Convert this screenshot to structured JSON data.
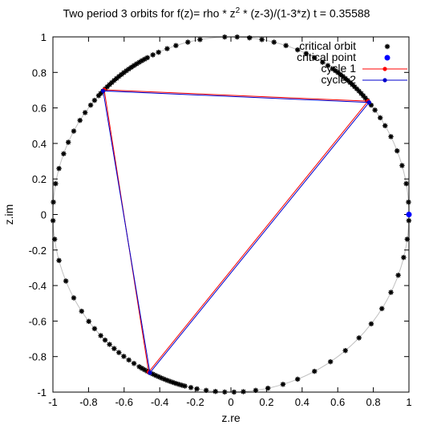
{
  "chart_data": {
    "type": "scatter",
    "title": {
      "prefix": "Two period 3 orbits for f(z)= rho * z",
      "superscript": "2",
      "suffix": " * (z-3)/(1-3*z)  t = 0.35588"
    },
    "xlabel": "z.re",
    "ylabel": "z.im",
    "xlim": [
      -1,
      1
    ],
    "ylim": [
      -1,
      1
    ],
    "x_ticks": [
      -1,
      -0.8,
      -0.6,
      -0.4,
      -0.2,
      0,
      0.2,
      0.4,
      0.6,
      0.8,
      1
    ],
    "x_tick_labels": [
      "-1",
      "-0.8",
      "-0.6",
      "-0.4",
      "-0.2",
      "0",
      "0.2",
      "0.4",
      "0.6",
      "0.8",
      "1"
    ],
    "y_ticks": [
      -1,
      -0.8,
      -0.6,
      -0.4,
      -0.2,
      0,
      0.2,
      0.4,
      0.6,
      0.8,
      1
    ],
    "y_tick_labels": [
      "-1",
      "-0.8",
      "-0.6",
      "-0.4",
      "-0.2",
      "0",
      "0.2",
      "0.4",
      "0.6",
      "0.8",
      "1"
    ],
    "grid": false,
    "legend_position": "top-right",
    "unit_circle": {
      "center": [
        0,
        0
      ],
      "radius": 1,
      "color": "#c0c0c0"
    },
    "series": [
      {
        "name": "critical orbit",
        "kind": "points",
        "color": "#000000",
        "marker": "star",
        "points_by_angle_deg": [
          100,
          104,
          108,
          111,
          114,
          116,
          118,
          119,
          120,
          121,
          122,
          123,
          124,
          125,
          126,
          127,
          128,
          129,
          130,
          131,
          132,
          133,
          134,
          135,
          136,
          137,
          138,
          140,
          142,
          145,
          148,
          152,
          156,
          160,
          165,
          170,
          176,
          182,
          188,
          195,
          202,
          208,
          213,
          217,
          220,
          223,
          225,
          227,
          229,
          231,
          233,
          235,
          237,
          239,
          240,
          241,
          242,
          243,
          244,
          245,
          246,
          247,
          248,
          249,
          250,
          251,
          252,
          253,
          254,
          255,
          257,
          259,
          262,
          265,
          268,
          271,
          274,
          278,
          282,
          287,
          292,
          298,
          304,
          310,
          316,
          322,
          328,
          334,
          340,
          346,
          352,
          358,
          4,
          10,
          16,
          21,
          26,
          30,
          33,
          36,
          38,
          40,
          41,
          42,
          43,
          44,
          45,
          46,
          47,
          48,
          49,
          50,
          51,
          52,
          53,
          54,
          55,
          57,
          59,
          62,
          65,
          68,
          72,
          76,
          80,
          84,
          88,
          92
        ]
      },
      {
        "name": "critical point",
        "kind": "points",
        "color": "#0000ff",
        "marker": "circle",
        "points": [
          [
            1,
            0
          ]
        ]
      },
      {
        "name": "cycle 1",
        "kind": "cycle",
        "color": "#ff0000",
        "marker": "circle",
        "points": [
          [
            0.77,
            0.638
          ],
          [
            -0.712,
            0.702
          ],
          [
            -0.462,
            -0.887
          ],
          [
            0.77,
            0.638
          ]
        ]
      },
      {
        "name": "cycle 2",
        "kind": "cycle",
        "color": "#0000cc",
        "marker": "circle",
        "points": [
          [
            0.776,
            0.631
          ],
          [
            -0.718,
            0.696
          ],
          [
            -0.455,
            -0.891
          ],
          [
            0.776,
            0.631
          ]
        ]
      }
    ]
  }
}
